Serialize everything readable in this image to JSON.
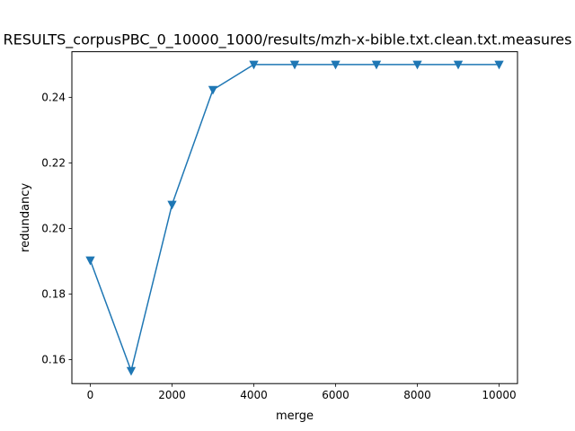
{
  "chart_data": {
    "type": "line",
    "title": "RESULTS_corpusPBC_0_10000_1000/results/mzh-x-bible.txt.clean.txt.measures",
    "xlabel": "merge",
    "ylabel": "redundancy",
    "x": [
      0,
      1000,
      2000,
      3000,
      4000,
      5000,
      6000,
      7000,
      8000,
      9000,
      10000
    ],
    "series": [
      {
        "values": [
          0.1903,
          0.1566,
          0.2073,
          0.2423,
          0.25,
          0.25,
          0.25,
          0.25,
          0.25,
          0.25,
          0.25
        ]
      }
    ],
    "xlim": [
      -450,
      10450
    ],
    "ylim": [
      0.1527,
      0.2539
    ],
    "xticks": [
      0,
      2000,
      4000,
      6000,
      8000,
      10000
    ],
    "xtick_labels": [
      "0",
      "2000",
      "4000",
      "6000",
      "8000",
      "10000"
    ],
    "yticks": [
      0.16,
      0.18,
      0.2,
      0.22,
      0.24
    ],
    "ytick_labels": [
      "0.16",
      "0.18",
      "0.20",
      "0.22",
      "0.24"
    ],
    "marker": "triangle-down",
    "grid": false,
    "colors": {
      "line": "#1f77b4",
      "axes": "#000000",
      "background": "#ffffff"
    }
  }
}
